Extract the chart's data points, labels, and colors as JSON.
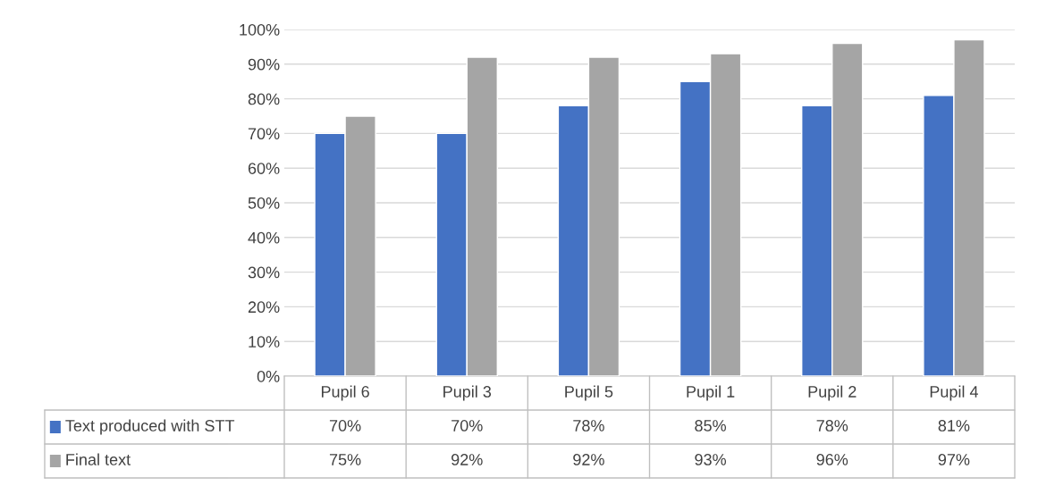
{
  "chart_data": {
    "type": "bar",
    "categories": [
      "Pupil 6",
      "Pupil 3",
      "Pupil 5",
      "Pupil 1",
      "Pupil 2",
      "Pupil 4"
    ],
    "series": [
      {
        "name": "Text produced with STT",
        "color": "#4472c4",
        "values": [
          70,
          70,
          78,
          85,
          78,
          81
        ],
        "value_labels": [
          "70%",
          "70%",
          "78%",
          "85%",
          "78%",
          "81%"
        ]
      },
      {
        "name": "Final text",
        "color": "#a5a5a5",
        "values": [
          75,
          92,
          92,
          93,
          96,
          97
        ],
        "value_labels": [
          "75%",
          "92%",
          "92%",
          "93%",
          "96%",
          "97%"
        ]
      }
    ],
    "ylim": [
      0,
      100
    ],
    "yticks": [
      {
        "value": 0,
        "label": "0%"
      },
      {
        "value": 10,
        "label": "10%"
      },
      {
        "value": 20,
        "label": "20%"
      },
      {
        "value": 30,
        "label": "30%"
      },
      {
        "value": 40,
        "label": "40%"
      },
      {
        "value": 50,
        "label": "50%"
      },
      {
        "value": 60,
        "label": "60%"
      },
      {
        "value": 70,
        "label": "70%"
      },
      {
        "value": 80,
        "label": "80%"
      },
      {
        "value": 90,
        "label": "90%"
      },
      {
        "value": 100,
        "label": "100%"
      }
    ],
    "grid": "y",
    "legend": "bottom"
  }
}
